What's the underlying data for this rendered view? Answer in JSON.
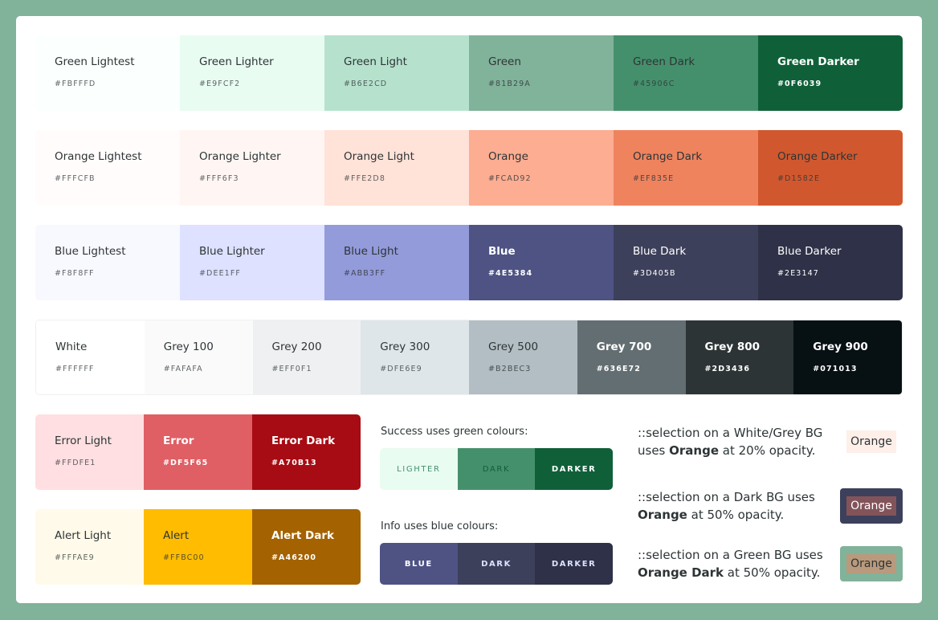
{
  "palettes": {
    "green": [
      {
        "name": "Green Lightest",
        "hex": "#FBFFFD",
        "bg": "#FBFFFD",
        "tone": "lt"
      },
      {
        "name": "Green Lighter",
        "hex": "#E9FCF2",
        "bg": "#E9FCF2",
        "tone": "lt"
      },
      {
        "name": "Green Light",
        "hex": "#B6E2CD",
        "bg": "#B6E2CD",
        "tone": "lt"
      },
      {
        "name": "Green",
        "hex": "#81B29A",
        "bg": "#81B29A",
        "tone": "md"
      },
      {
        "name": "Green Dark",
        "hex": "#45906C",
        "bg": "#45906C",
        "tone": "md"
      },
      {
        "name": "Green Darker",
        "hex": "#0F6039",
        "bg": "#0F6039",
        "tone": "dk"
      }
    ],
    "orange": [
      {
        "name": "Orange Lightest",
        "hex": "#FFFCFB",
        "bg": "#FFFCFB",
        "tone": "lt"
      },
      {
        "name": "Orange Lighter",
        "hex": "#FFF6F3",
        "bg": "#FFF6F3",
        "tone": "lt"
      },
      {
        "name": "Orange Light",
        "hex": "#FFE2D8",
        "bg": "#FFE2D8",
        "tone": "lt"
      },
      {
        "name": "Orange",
        "hex": "#FCAD92",
        "bg": "#FCAD92",
        "tone": "md"
      },
      {
        "name": "Orange Dark",
        "hex": "#EF835E",
        "bg": "#EF835E",
        "tone": "md"
      },
      {
        "name": "Orange Darker",
        "hex": "#D1582E",
        "bg": "#D1582E",
        "tone": "md"
      }
    ],
    "blue": [
      {
        "name": "Blue Lightest",
        "hex": "#F8F8FF",
        "bg": "#F8F8FF",
        "tone": "lt"
      },
      {
        "name": "Blue Lighter",
        "hex": "#DEE1FF",
        "bg": "#DEE1FF",
        "tone": "lt"
      },
      {
        "name": "Blue Light",
        "hex": "#ABB3FF",
        "bg": "#939BDB",
        "tone": "md"
      },
      {
        "name": "Blue",
        "hex": "#4E5384",
        "bg": "#4E5384",
        "tone": "dk"
      },
      {
        "name": "Blue Dark",
        "hex": "#3D405B",
        "bg": "#3D405B",
        "tone": "dk2"
      },
      {
        "name": "Blue Darker",
        "hex": "#2E3147",
        "bg": "#2E3147",
        "tone": "dk2"
      }
    ],
    "grey": [
      {
        "name": "White",
        "hex": "#FFFFFF",
        "bg": "#FFFFFF",
        "tone": "lt"
      },
      {
        "name": "Grey 100",
        "hex": "#FAFAFA",
        "bg": "#FAFAFA",
        "tone": "lt"
      },
      {
        "name": "Grey 200",
        "hex": "#EFF0F1",
        "bg": "#EFF0F1",
        "tone": "lt"
      },
      {
        "name": "Grey 300",
        "hex": "#DFE6E9",
        "bg": "#DFE6E9",
        "tone": "lt"
      },
      {
        "name": "Grey 500",
        "hex": "#B2BEC3",
        "bg": "#B2BEC3",
        "tone": "md"
      },
      {
        "name": "Grey 700",
        "hex": "#636E72",
        "bg": "#636E72",
        "tone": "dk"
      },
      {
        "name": "Grey 800",
        "hex": "#2D3436",
        "bg": "#2D3436",
        "tone": "dk"
      },
      {
        "name": "Grey 900",
        "hex": "#071013",
        "bg": "#071013",
        "tone": "dk"
      }
    ],
    "error": [
      {
        "name": "Error Light",
        "hex": "#FFDFE1",
        "bg": "#FFDFE1",
        "tone": "lt"
      },
      {
        "name": "Error",
        "hex": "#DF5F65",
        "bg": "#DF5F65",
        "tone": "dk"
      },
      {
        "name": "Error Dark",
        "hex": "#A70B13",
        "bg": "#A70B13",
        "tone": "dk"
      }
    ],
    "alert": [
      {
        "name": "Alert Light",
        "hex": "#FFFAE9",
        "bg": "#FFFAE9",
        "tone": "lt"
      },
      {
        "name": "Alert",
        "hex": "#FFBC00",
        "bg": "#FFBC00",
        "tone": "md"
      },
      {
        "name": "Alert Dark",
        "hex": "#A46200",
        "bg": "#A46200",
        "tone": "dk"
      }
    ]
  },
  "success": {
    "title": "Success uses green colours:",
    "items": [
      {
        "label": "LIGHTER",
        "bg": "#E9FCF2",
        "fg": "#45906C"
      },
      {
        "label": "DARK",
        "bg": "#45906C",
        "fg": "#0F6039"
      },
      {
        "label": "DARKER",
        "bg": "#0F6039",
        "fg": "#FFFFFF"
      }
    ]
  },
  "info": {
    "title": "Info uses blue colours:",
    "items": [
      {
        "label": "BLUE",
        "bg": "#4E5384",
        "fg": "#FFFFFF"
      },
      {
        "label": "DARK",
        "bg": "#3D405B",
        "fg": "#DEE1FF"
      },
      {
        "label": "DARKER",
        "bg": "#2E3147",
        "fg": "#DEE1FF"
      }
    ]
  },
  "selection": [
    {
      "before": "::selection on a White/Grey BG uses ",
      "bold": "Orange",
      "after": " at 20% opacity.",
      "example": "Orange"
    },
    {
      "before": "::selection on a Dark BG uses ",
      "bold": "Orange",
      "after": " at 50% opacity.",
      "example": "Orange"
    },
    {
      "before": "::selection on a Green BG uses ",
      "bold": "Orange Dark",
      "after": " at 50% opacity.",
      "example": "Orange"
    }
  ]
}
